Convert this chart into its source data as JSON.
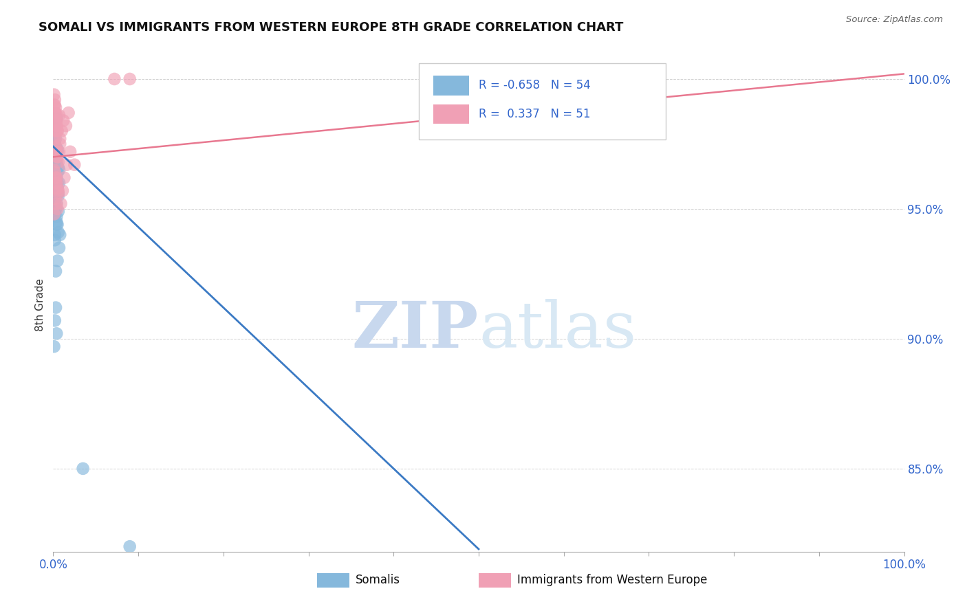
{
  "title": "SOMALI VS IMMIGRANTS FROM WESTERN EUROPE 8TH GRADE CORRELATION CHART",
  "source_text": "Source: ZipAtlas.com",
  "ylabel": "8th Grade",
  "ytick_labels": [
    "100.0%",
    "95.0%",
    "90.0%",
    "85.0%"
  ],
  "ytick_values": [
    1.0,
    0.95,
    0.9,
    0.85
  ],
  "ymin": 0.818,
  "ymax": 1.008,
  "xmin": 0.0,
  "xmax": 1.0,
  "blue_R": -0.658,
  "blue_N": 54,
  "pink_R": 0.337,
  "pink_N": 51,
  "blue_color": "#85B8DC",
  "pink_color": "#F0A0B5",
  "blue_line_color": "#3B7AC4",
  "pink_line_color": "#E87890",
  "watermark_zip": "ZIP",
  "watermark_atlas": "atlas",
  "watermark_color": "#C8D8EE",
  "legend_label_blue": "Somalis",
  "legend_label_pink": "Immigrants from Western Europe",
  "blue_line_x0": 0.0,
  "blue_line_y0": 0.974,
  "blue_line_x1": 0.5,
  "blue_line_y1": 0.819,
  "pink_line_x0": 0.0,
  "pink_line_x1": 1.0,
  "pink_line_y0": 0.97,
  "pink_line_y1": 1.002,
  "blue_points_x": [
    0.001,
    0.002,
    0.003,
    0.004,
    0.003,
    0.001,
    0.002,
    0.003,
    0.004,
    0.005,
    0.002,
    0.003,
    0.004,
    0.005,
    0.006,
    0.002,
    0.004,
    0.005,
    0.007,
    0.003,
    0.001,
    0.003,
    0.005,
    0.006,
    0.004,
    0.002,
    0.004,
    0.003,
    0.002,
    0.001,
    0.006,
    0.004,
    0.003,
    0.007,
    0.005,
    0.006,
    0.003,
    0.002,
    0.004,
    0.001,
    0.005,
    0.006,
    0.003,
    0.004,
    0.002,
    0.007,
    0.005,
    0.003,
    0.004,
    0.002,
    0.008,
    0.09,
    0.035,
    0.005
  ],
  "blue_points_y": [
    0.978,
    0.975,
    0.971,
    0.968,
    0.974,
    0.966,
    0.963,
    0.961,
    0.959,
    0.956,
    0.953,
    0.95,
    0.947,
    0.944,
    0.941,
    0.938,
    0.967,
    0.964,
    0.96,
    0.957,
    0.954,
    0.951,
    0.96,
    0.956,
    0.952,
    0.948,
    0.944,
    0.977,
    0.972,
    0.981,
    0.966,
    0.962,
    0.969,
    0.965,
    0.973,
    0.949,
    0.912,
    0.907,
    0.902,
    0.897,
    0.958,
    0.955,
    0.95,
    0.945,
    0.94,
    0.935,
    0.93,
    0.926,
    0.985,
    0.983,
    0.94,
    0.82,
    0.85,
    0.972
  ],
  "pink_points_x": [
    0.001,
    0.002,
    0.003,
    0.004,
    0.005,
    0.002,
    0.003,
    0.004,
    0.005,
    0.006,
    0.001,
    0.003,
    0.004,
    0.005,
    0.006,
    0.002,
    0.004,
    0.005,
    0.007,
    0.008,
    0.001,
    0.003,
    0.004,
    0.005,
    0.007,
    0.002,
    0.003,
    0.004,
    0.005,
    0.006,
    0.008,
    0.01,
    0.012,
    0.015,
    0.018,
    0.009,
    0.011,
    0.013,
    0.016,
    0.02,
    0.001,
    0.002,
    0.003,
    0.004,
    0.005,
    0.002,
    0.003,
    0.004,
    0.025,
    0.072,
    0.09
  ],
  "pink_points_y": [
    0.99,
    0.987,
    0.984,
    0.982,
    0.98,
    0.977,
    0.974,
    0.972,
    0.97,
    0.968,
    0.965,
    0.962,
    0.96,
    0.958,
    0.956,
    0.954,
    0.952,
    0.95,
    0.972,
    0.975,
    0.948,
    0.98,
    0.982,
    0.97,
    0.986,
    0.964,
    0.96,
    0.962,
    0.972,
    0.957,
    0.977,
    0.98,
    0.984,
    0.982,
    0.987,
    0.952,
    0.957,
    0.962,
    0.967,
    0.972,
    0.994,
    0.99,
    0.987,
    0.984,
    0.98,
    0.992,
    0.989,
    0.986,
    0.967,
    1.0,
    1.0
  ]
}
